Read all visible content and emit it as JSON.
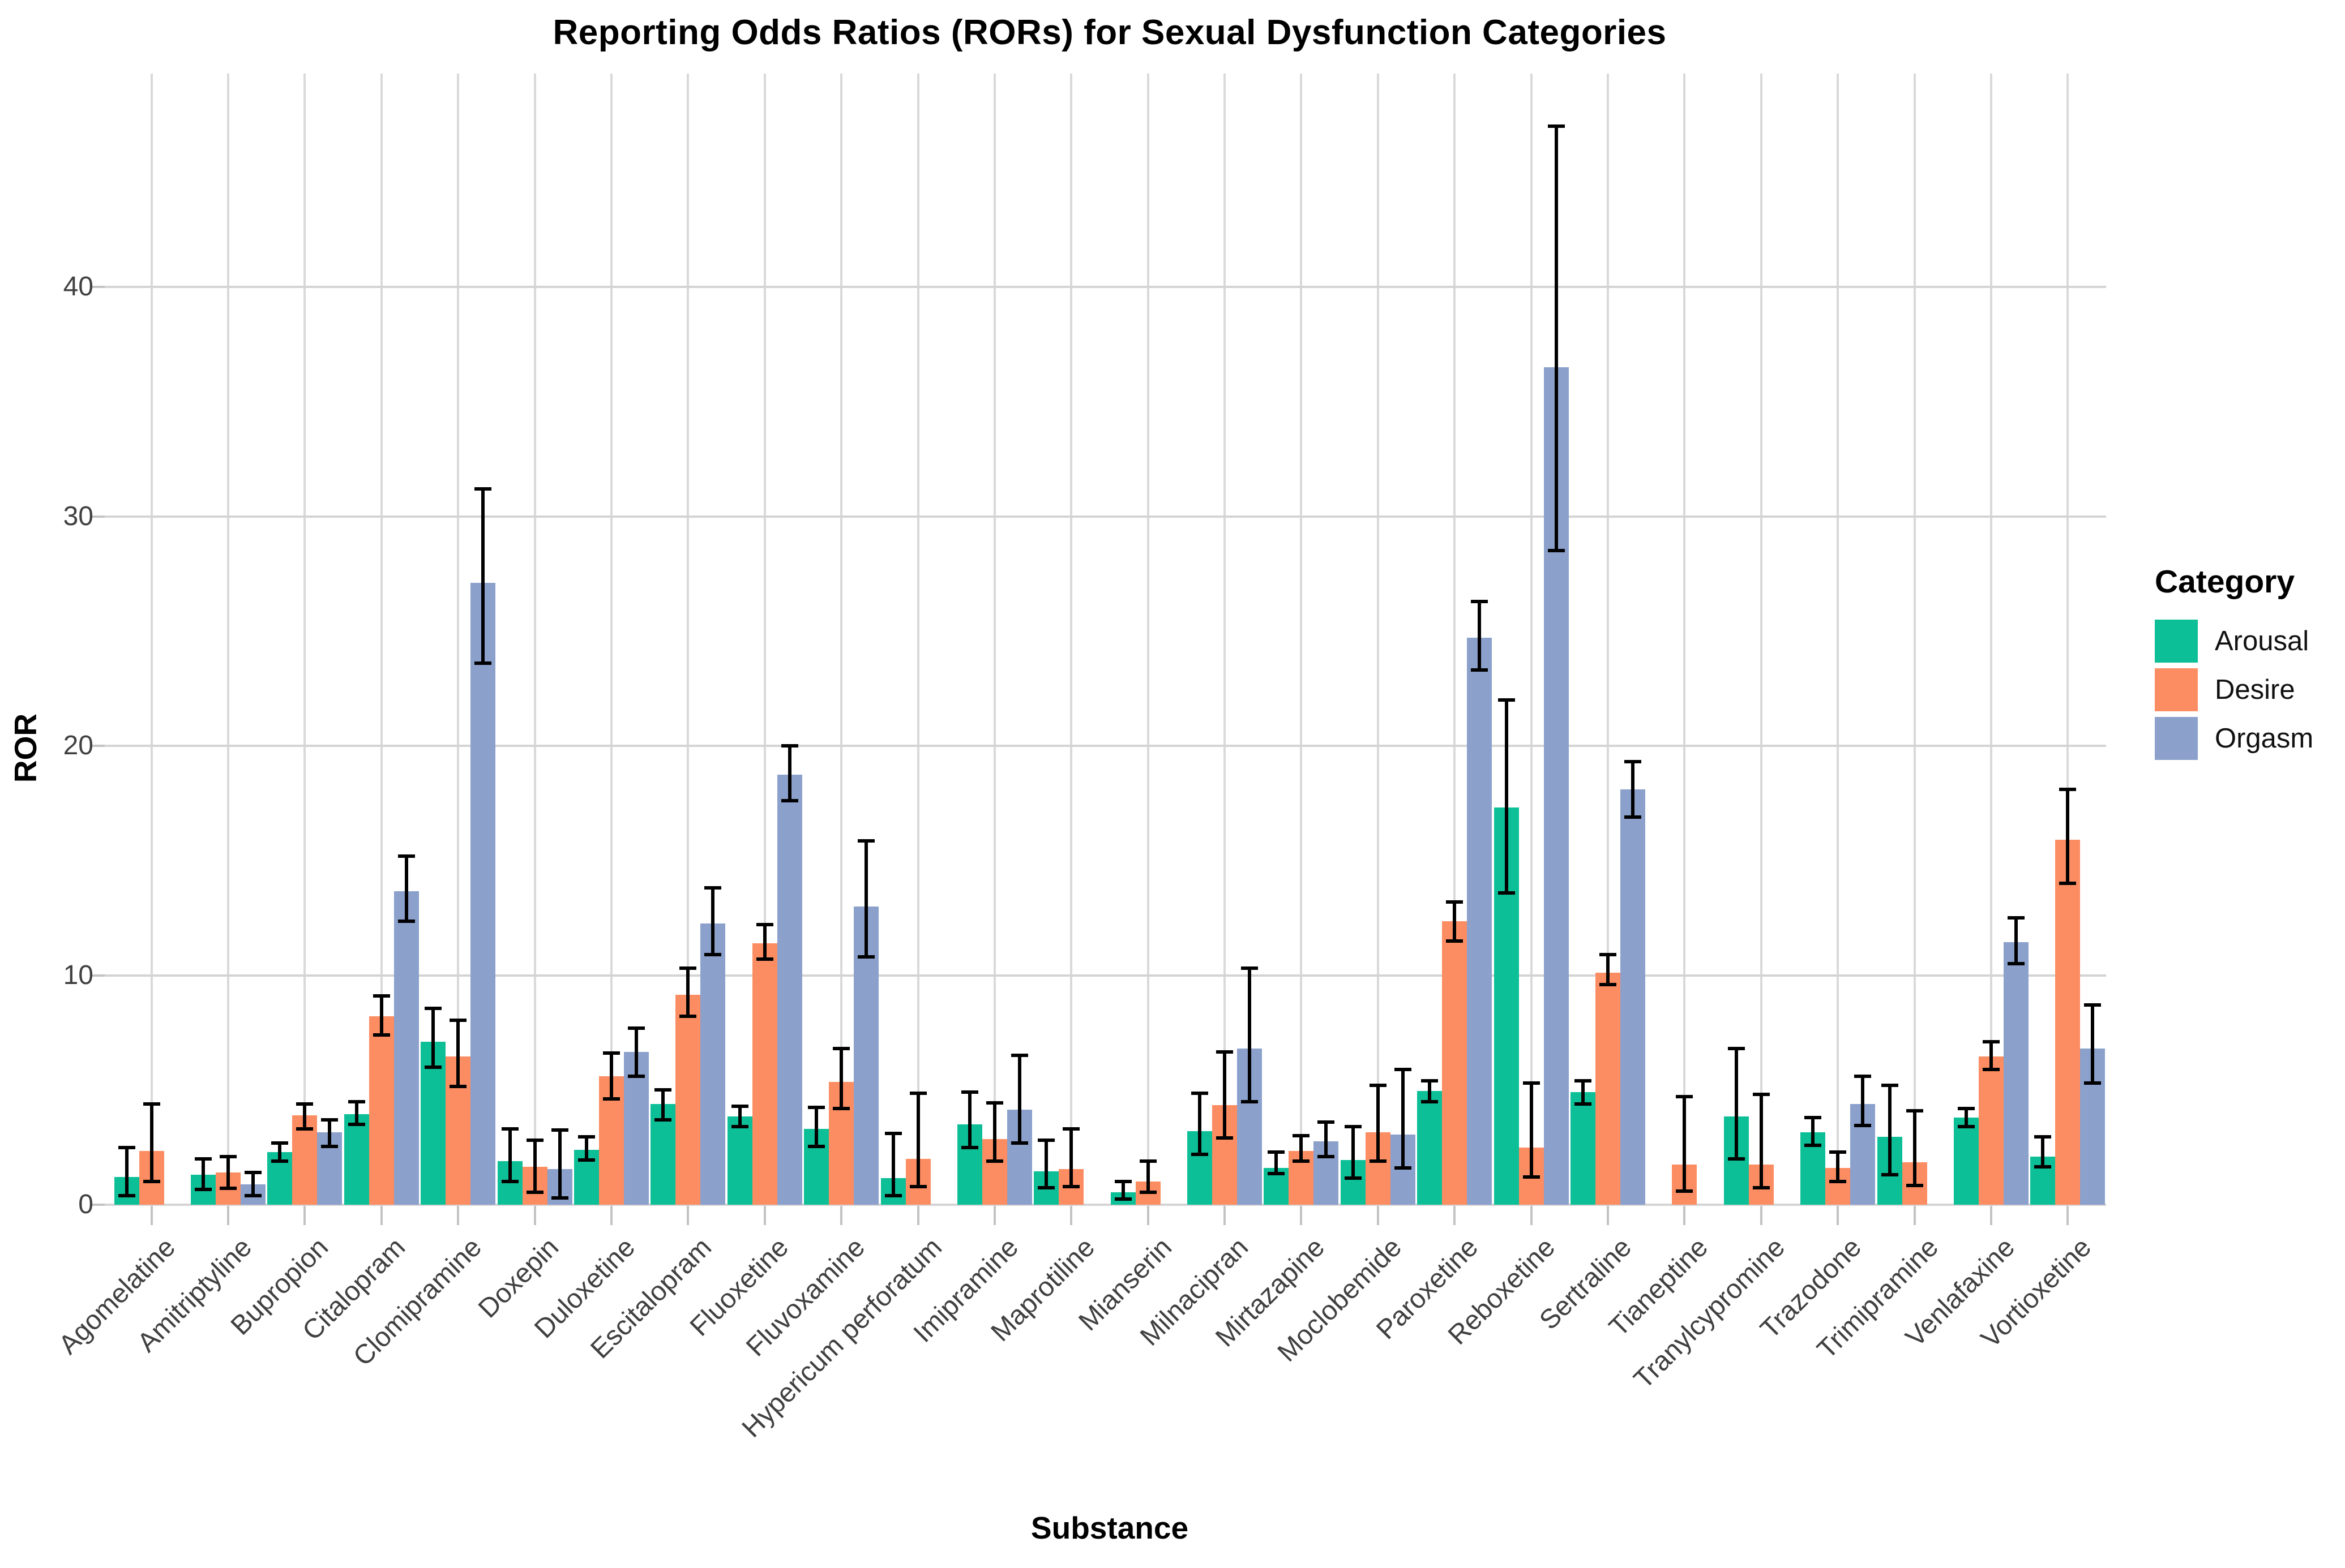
{
  "title": "Reporting Odds Ratios (RORs) for Sexual Dysfunction Categories",
  "chart_data": {
    "type": "bar",
    "title": "Reporting Odds Ratios (RORs) for Sexual Dysfunction Categories",
    "xlabel": "Substance",
    "ylabel": "ROR",
    "y_ticks": [
      0,
      10,
      20,
      30,
      40
    ],
    "ylim": [
      0,
      49.3
    ],
    "grid": "horizontal major lines at y ticks, one vertical line per substance",
    "legend_position": "right",
    "error_bars": true,
    "legend": {
      "title": "Category",
      "entries": [
        {
          "label": "Arousal",
          "color": "#0dbf96"
        },
        {
          "label": "Desire",
          "color": "#fc8d62"
        },
        {
          "label": "Orgasm",
          "color": "#8ba0cb"
        }
      ]
    },
    "categories": [
      "Agomelatine",
      "Amitriptyline",
      "Bupropion",
      "Citalopram",
      "Clomipramine",
      "Doxepin",
      "Duloxetine",
      "Escitalopram",
      "Fluoxetine",
      "Fluvoxamine",
      "Hypericum perforatum",
      "Imipramine",
      "Maprotiline",
      "Mianserin",
      "Milnacipran",
      "Mirtazapine",
      "Moclobemide",
      "Paroxetine",
      "Reboxetine",
      "Sertraline",
      "Tianeptine",
      "Tranylcypromine",
      "Trazodone",
      "Trimipramine",
      "Venlafaxine",
      "Vortioxetine"
    ],
    "series": [
      {
        "name": "Arousal",
        "color": "#0dbf96",
        "values": [
          1.2,
          1.3,
          2.3,
          3.95,
          7.1,
          1.9,
          2.4,
          4.4,
          3.85,
          3.3,
          1.15,
          3.5,
          1.45,
          0.55,
          3.2,
          1.6,
          1.95,
          4.95,
          17.3,
          4.9,
          null,
          3.85,
          3.15,
          2.95,
          3.8,
          2.1
        ],
        "ci_low": [
          0.4,
          0.67,
          1.9,
          3.5,
          6.0,
          1.0,
          1.95,
          3.7,
          3.4,
          2.55,
          0.4,
          2.5,
          0.75,
          0.25,
          2.2,
          1.35,
          1.15,
          4.5,
          13.6,
          4.4,
          null,
          2.0,
          2.6,
          1.3,
          3.4,
          1.65
        ],
        "ci_high": [
          2.5,
          2.0,
          2.7,
          4.5,
          8.55,
          3.3,
          2.95,
          5.0,
          4.3,
          4.25,
          3.1,
          4.9,
          2.8,
          1.0,
          4.85,
          2.3,
          3.4,
          5.4,
          22.0,
          5.4,
          null,
          6.8,
          3.8,
          5.2,
          4.2,
          2.95
        ]
      },
      {
        "name": "Desire",
        "color": "#fc8d62",
        "values": [
          2.35,
          1.4,
          3.9,
          8.2,
          6.45,
          1.65,
          5.6,
          9.15,
          11.4,
          5.35,
          2.0,
          2.85,
          1.55,
          1.0,
          4.35,
          2.35,
          3.15,
          12.35,
          2.5,
          10.1,
          1.75,
          1.75,
          1.6,
          1.85,
          6.45,
          15.9
        ],
        "ci_low": [
          1.0,
          0.72,
          3.3,
          7.4,
          5.15,
          0.55,
          4.6,
          8.2,
          10.7,
          4.2,
          0.8,
          1.9,
          0.8,
          0.55,
          2.9,
          1.9,
          1.9,
          11.5,
          1.2,
          9.6,
          0.6,
          0.75,
          1.0,
          0.85,
          5.9,
          14.0
        ],
        "ci_high": [
          4.4,
          2.1,
          4.4,
          9.1,
          8.05,
          2.8,
          6.6,
          10.3,
          12.2,
          6.8,
          4.85,
          4.45,
          3.3,
          1.9,
          6.65,
          3.0,
          5.2,
          13.2,
          5.3,
          10.9,
          4.7,
          4.8,
          2.3,
          4.1,
          7.1,
          18.1
        ]
      },
      {
        "name": "Orgasm",
        "color": "#8ba0cb",
        "values": [
          null,
          0.9,
          3.15,
          13.65,
          27.1,
          1.55,
          6.65,
          12.25,
          18.75,
          13.0,
          null,
          4.15,
          null,
          null,
          6.8,
          2.75,
          3.05,
          24.7,
          36.5,
          18.1,
          null,
          null,
          4.4,
          null,
          11.45,
          6.8
        ],
        "ci_low": [
          null,
          0.4,
          2.55,
          12.35,
          23.6,
          0.3,
          5.6,
          10.9,
          17.6,
          10.8,
          null,
          2.7,
          null,
          null,
          4.5,
          2.1,
          1.6,
          23.3,
          28.5,
          16.9,
          null,
          null,
          3.45,
          null,
          10.5,
          5.3
        ],
        "ci_high": [
          null,
          1.4,
          3.7,
          15.2,
          31.2,
          3.25,
          7.7,
          13.8,
          20.0,
          15.85,
          null,
          6.5,
          null,
          null,
          10.3,
          3.6,
          5.9,
          26.3,
          47.0,
          19.3,
          null,
          null,
          5.6,
          null,
          12.5,
          8.7
        ]
      }
    ]
  }
}
